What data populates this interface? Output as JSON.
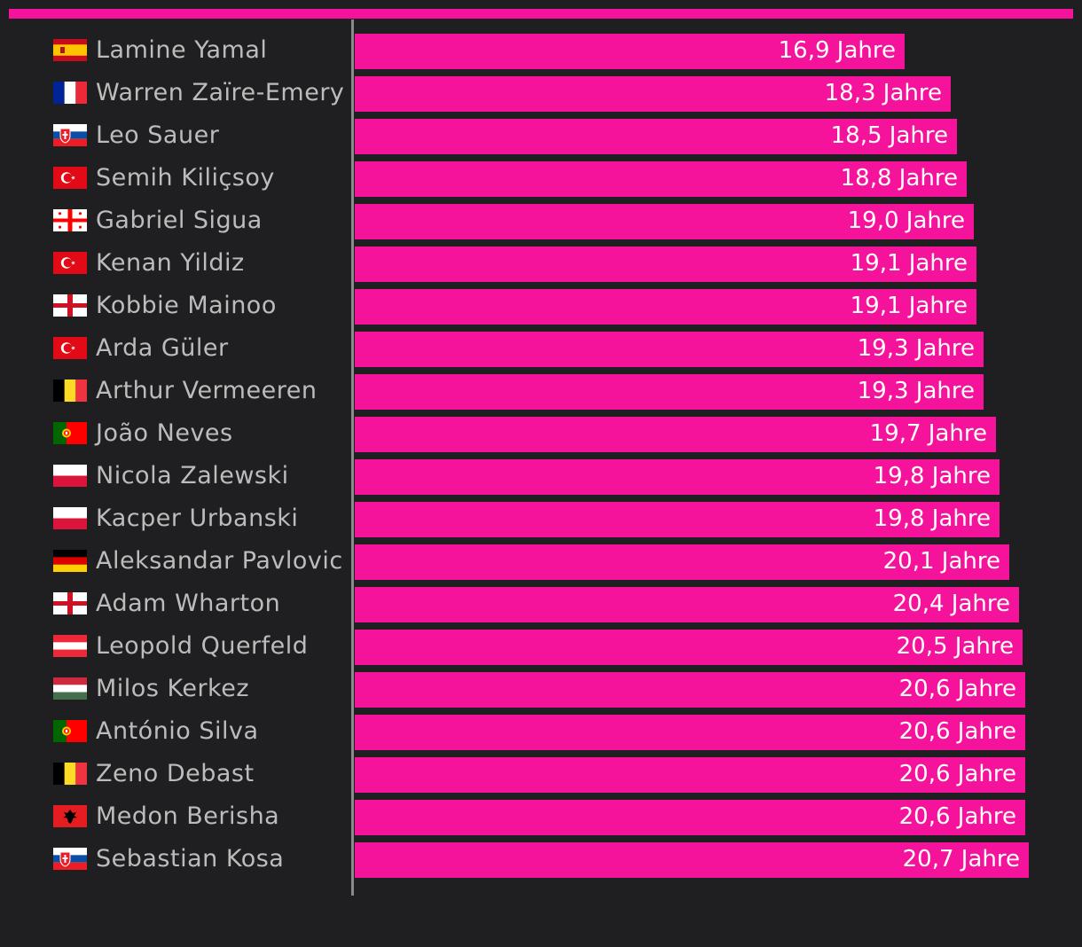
{
  "colors": {
    "background": "#1f1f21",
    "accent": "#f5139c",
    "axis": "#8a8a8a",
    "label": "#bcbcbc",
    "value_text": "#ffffff"
  },
  "chart_data": {
    "type": "bar",
    "orientation": "horizontal",
    "title": "",
    "xlabel": "",
    "ylabel": "",
    "unit": "Jahre",
    "xlim": [
      0,
      20.7
    ],
    "grid": false,
    "legend": "none",
    "categories": [
      "Lamine Yamal",
      "Warren Zaïre-Emery",
      "Leo Sauer",
      "Semih Kiliçsoy",
      "Gabriel Sigua",
      "Kenan Yildiz",
      "Kobbie Mainoo",
      "Arda Güler",
      "Arthur Vermeeren",
      "João Neves",
      "Nicola Zalewski",
      "Kacper Urbanski",
      "Aleksandar Pavlovic",
      "Adam Wharton",
      "Leopold Querfeld",
      "Milos Kerkez",
      "António Silva",
      "Zeno Debast",
      "Medon Berisha",
      "Sebastian Kosa"
    ],
    "flags": [
      "spain",
      "france",
      "slovakia",
      "turkey",
      "georgia",
      "turkey",
      "england",
      "turkey",
      "belgium",
      "portugal",
      "poland",
      "poland",
      "germany",
      "england",
      "austria",
      "hungary",
      "portugal",
      "belgium",
      "albania",
      "slovakia"
    ],
    "values": [
      16.9,
      18.3,
      18.5,
      18.8,
      19.0,
      19.1,
      19.1,
      19.3,
      19.3,
      19.7,
      19.8,
      19.8,
      20.1,
      20.4,
      20.5,
      20.6,
      20.6,
      20.6,
      20.6,
      20.7
    ],
    "value_labels": [
      "16,9 Jahre",
      "18,3 Jahre",
      "18,5 Jahre",
      "18,8 Jahre",
      "19,0 Jahre",
      "19,1 Jahre",
      "19,1 Jahre",
      "19,3 Jahre",
      "19,3 Jahre",
      "19,7 Jahre",
      "19,8 Jahre",
      "19,8 Jahre",
      "20,1 Jahre",
      "20,4 Jahre",
      "20,5 Jahre",
      "20,6 Jahre",
      "20,6 Jahre",
      "20,6 Jahre",
      "20,6 Jahre",
      "20,7 Jahre"
    ]
  }
}
